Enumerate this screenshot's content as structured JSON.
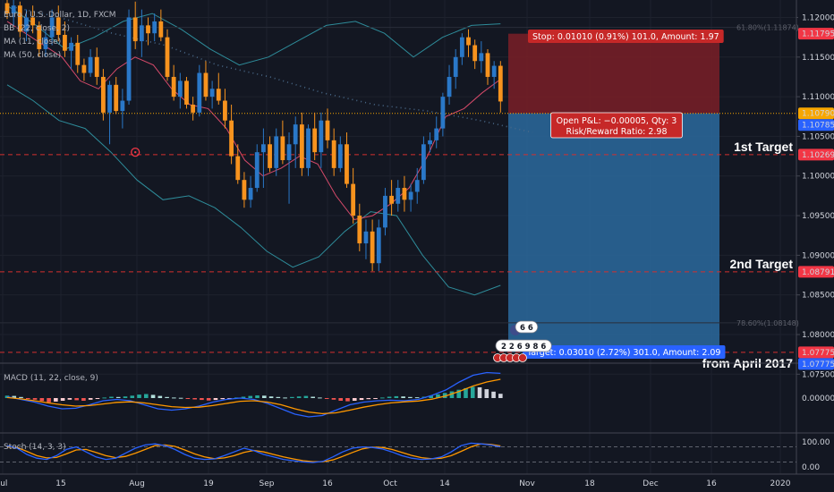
{
  "chart_data": {
    "type": "candlestick",
    "symbol": "Euro / U.S. Dollar, 1D, FXCM",
    "price_axis": {
      "range": [
        1.0765,
        1.1222
      ],
      "ticks": [
        "1.12000",
        "1.11500",
        "1.11000",
        "1.10500",
        "1.10000",
        "1.09500",
        "1.09000",
        "1.08500",
        "1.08000",
        "1.07500"
      ]
    },
    "date_axis": {
      "labels": [
        "Jul",
        "15",
        "Aug",
        "19",
        "Sep",
        "16",
        "Oct",
        "14",
        "Nov",
        "18",
        "Dec",
        "16",
        "2020"
      ]
    },
    "indicators": {
      "bb": "BB (22, close, 2)",
      "ma_fast": "MA (11, close)",
      "ma_slow": "MA (50, close)",
      "macd": "MACD (11, 22, close, 9)",
      "stoch": "Stoch (14, 3, 3)"
    },
    "candles": [
      [
        1.1218,
        1.1225,
        1.1198,
        1.1205
      ],
      [
        1.1205,
        1.1222,
        1.119,
        1.1215
      ],
      [
        1.1215,
        1.122,
        1.1175,
        1.1182
      ],
      [
        1.1182,
        1.121,
        1.117,
        1.12
      ],
      [
        1.12,
        1.1215,
        1.118,
        1.119
      ],
      [
        1.119,
        1.1195,
        1.115,
        1.116
      ],
      [
        1.116,
        1.1185,
        1.115,
        1.1175
      ],
      [
        1.1175,
        1.121,
        1.1165,
        1.12
      ],
      [
        1.12,
        1.1215,
        1.117,
        1.1178
      ],
      [
        1.1178,
        1.1195,
        1.115,
        1.1158
      ],
      [
        1.1158,
        1.1175,
        1.1135,
        1.1168
      ],
      [
        1.1168,
        1.1178,
        1.113,
        1.114
      ],
      [
        1.114,
        1.1148,
        1.112,
        1.113
      ],
      [
        1.113,
        1.116,
        1.1125,
        1.115
      ],
      [
        1.115,
        1.1162,
        1.1115,
        1.1125
      ],
      [
        1.1125,
        1.1135,
        1.107,
        1.108
      ],
      [
        1.108,
        1.112,
        1.104,
        1.1115
      ],
      [
        1.1115,
        1.1125,
        1.1078,
        1.1082
      ],
      [
        1.1082,
        1.111,
        1.106,
        1.1095
      ],
      [
        1.1095,
        1.121,
        1.109,
        1.12
      ],
      [
        1.12,
        1.122,
        1.116,
        1.117
      ],
      [
        1.117,
        1.121,
        1.115,
        1.119
      ],
      [
        1.119,
        1.12,
        1.1165,
        1.118
      ],
      [
        1.118,
        1.1205,
        1.117,
        1.1195
      ],
      [
        1.1195,
        1.121,
        1.117,
        1.1175
      ],
      [
        1.1175,
        1.1185,
        1.112,
        1.1125
      ],
      [
        1.1125,
        1.114,
        1.1095,
        1.11
      ],
      [
        1.11,
        1.113,
        1.1085,
        1.112
      ],
      [
        1.112,
        1.1125,
        1.1085,
        1.109
      ],
      [
        1.109,
        1.11,
        1.107,
        1.108
      ],
      [
        1.108,
        1.114,
        1.1075,
        1.113
      ],
      [
        1.113,
        1.1145,
        1.1095,
        1.11
      ],
      [
        1.11,
        1.112,
        1.1085,
        1.111
      ],
      [
        1.111,
        1.113,
        1.109,
        1.1095
      ],
      [
        1.1095,
        1.111,
        1.106,
        1.107
      ],
      [
        1.107,
        1.109,
        1.1015,
        1.1025
      ],
      [
        1.1025,
        1.104,
        1.099,
        1.0995
      ],
      [
        1.0995,
        1.1005,
        1.096,
        1.097
      ],
      [
        1.097,
        1.1,
        1.096,
        1.0985
      ],
      [
        1.0985,
        1.104,
        1.098,
        1.103
      ],
      [
        1.103,
        1.106,
        1.0985,
        1.104
      ],
      [
        1.104,
        1.105,
        1.1005,
        1.101
      ],
      [
        1.101,
        1.106,
        1.1,
        1.105
      ],
      [
        1.105,
        1.107,
        1.1015,
        1.102
      ],
      [
        1.102,
        1.1055,
        1.0965,
        1.104
      ],
      [
        1.104,
        1.1075,
        1.101,
        1.1065
      ],
      [
        1.1065,
        1.108,
        1.1,
        1.101
      ],
      [
        1.101,
        1.1065,
        1.1,
        1.106
      ],
      [
        1.106,
        1.108,
        1.102,
        1.103
      ],
      [
        1.103,
        1.108,
        1.101,
        1.107
      ],
      [
        1.107,
        1.1085,
        1.1035,
        1.1045
      ],
      [
        1.1045,
        1.106,
        1.1,
        1.101
      ],
      [
        1.101,
        1.105,
        1.1005,
        1.104
      ],
      [
        1.104,
        1.1055,
        1.0985,
        1.099
      ],
      [
        1.099,
        1.101,
        1.094,
        1.095
      ],
      [
        1.095,
        1.0965,
        1.0905,
        1.0915
      ],
      [
        1.0915,
        1.0945,
        1.0895,
        1.093
      ],
      [
        1.093,
        1.0945,
        1.088,
        1.089
      ],
      [
        1.089,
        1.0945,
        1.088,
        1.0935
      ],
      [
        1.0935,
        1.0985,
        1.0925,
        1.0975
      ],
      [
        1.0975,
        1.0995,
        1.095,
        1.0965
      ],
      [
        1.0965,
        1.0995,
        1.0955,
        1.0985
      ],
      [
        1.0985,
        1.1,
        1.0955,
        1.097
      ],
      [
        1.097,
        1.099,
        1.0955,
        1.098
      ],
      [
        1.098,
        1.101,
        1.0965,
        1.0995
      ],
      [
        1.0995,
        1.105,
        1.099,
        1.104
      ],
      [
        1.104,
        1.1055,
        1.103,
        1.1045
      ],
      [
        1.1045,
        1.1075,
        1.1035,
        1.106
      ],
      [
        1.106,
        1.1105,
        1.105,
        1.11
      ],
      [
        1.11,
        1.114,
        1.109,
        1.1125
      ],
      [
        1.1125,
        1.116,
        1.111,
        1.115
      ],
      [
        1.115,
        1.118,
        1.114,
        1.1175
      ],
      [
        1.1175,
        1.1185,
        1.115,
        1.1165
      ],
      [
        1.1165,
        1.1172,
        1.1135,
        1.1145
      ],
      [
        1.1145,
        1.117,
        1.113,
        1.1155
      ],
      [
        1.1155,
        1.116,
        1.1115,
        1.1125
      ],
      [
        1.1125,
        1.1145,
        1.111,
        1.1139
      ],
      [
        1.1139,
        1.1145,
        1.108,
        1.1094
      ]
    ],
    "bb_upper": [
      1.1215,
      1.119,
      1.116,
      1.1175,
      1.1195,
      1.1205,
      1.1185,
      1.116,
      1.114,
      1.115,
      1.117,
      1.119,
      1.1195,
      1.118,
      1.115,
      1.1175,
      1.119,
      1.1192
    ],
    "bb_lower": [
      1.1115,
      1.1095,
      1.107,
      1.106,
      1.103,
      1.0995,
      1.097,
      1.0975,
      1.096,
      1.0935,
      1.0905,
      1.0885,
      1.0898,
      1.093,
      1.0955,
      1.095,
      1.09,
      1.086,
      1.085,
      1.0862
    ],
    "ma_fast": [
      1.1195,
      1.118,
      1.1165,
      1.115,
      1.112,
      1.111,
      1.1135,
      1.115,
      1.114,
      1.111,
      1.109,
      1.1085,
      1.106,
      1.102,
      1.1,
      1.101,
      1.1025,
      1.1015,
      1.0975,
      1.0945,
      1.095,
      1.0965,
      1.0985,
      1.1025,
      1.1075,
      1.1085,
      1.1105,
      1.1122
    ],
    "ma_slow": [
      1.1215,
      1.12,
      1.118,
      1.1165,
      1.114,
      1.1125,
      1.1105,
      1.109,
      1.1082,
      1.107,
      1.1055
    ],
    "levels": [
      {
        "name": "entry",
        "price": 1.1079,
        "label": "1.10790"
      },
      {
        "name": "stop",
        "price": 1.11795,
        "label": "1.11795"
      },
      {
        "name": "target1",
        "price": 1.10269,
        "label": "1.10269"
      },
      {
        "name": "target2",
        "price": 1.08791,
        "label": "1.08791"
      },
      {
        "name": "target3",
        "price": 1.07775,
        "label": "1.07775"
      }
    ],
    "price_labels": [
      {
        "price": 1.12,
        "text": "1.12000"
      },
      {
        "price": 1.11795,
        "text": "1.11795",
        "color": "#f23645"
      },
      {
        "price": 1.1079,
        "text": "1.10790",
        "color": "#f7a600"
      },
      {
        "price": 1.10785,
        "text": "1.10785",
        "color": "#2962ff"
      },
      {
        "price": 1.10269,
        "text": "1.10269",
        "color": "#f23645"
      },
      {
        "price": 1.08791,
        "text": "1.08791",
        "color": "#f23645"
      },
      {
        "price": 1.07775,
        "text": "1.07775",
        "color": "#f23645"
      },
      {
        "price": 1.07775,
        "text": "1.07775",
        "color": "#2962ff"
      }
    ],
    "fib_labels": [
      "61.80%(1.11874)",
      "78.60%(1.08148)"
    ],
    "annotations": {
      "stop_box": "Stop: 0.01010 (0.91%) 101.0, Amount: 1.97",
      "pnl_line1": "Open P&L: −0.00005, Qty: 3",
      "pnl_line2": "Risk/Reward Ratio: 2.98",
      "target_box": "Target: 0.03010 (2.72%) 301.0, Amount: 2.09",
      "target1_label": "1st Target",
      "target2_label": "2nd Target",
      "target3_label": "from April 2017",
      "events_top": "6 6",
      "events_bottom": "2 2 6 9 8 6"
    },
    "macd": {
      "hist": [
        0.0009,
        0.0008,
        0.0004,
        -0.0002,
        -0.0006,
        -0.0011,
        -0.0016,
        -0.0013,
        -0.001,
        -0.0006,
        -0.0008,
        -0.001,
        -0.0006,
        -0.0002,
        0.0002,
        0.0005,
        0.0004,
        0.0006,
        0.0009,
        0.0013,
        0.0015,
        0.0012,
        0.0008,
        0.0004,
        0.0002,
        0.0001,
        -0.0002,
        -0.0005,
        -0.0007,
        -0.0009,
        -0.0007,
        -0.0004,
        -0.0002,
        0.0002,
        0.0005,
        0.0008,
        0.001,
        0.0009,
        0.0006,
        0.0004,
        0.0002,
        0.0004,
        0.0006,
        0.0008,
        0.0005,
        0.0002,
        -0.0002,
        -0.0006,
        -0.001,
        -0.0012,
        -0.001,
        -0.0007,
        -0.0004,
        -0.0001,
        0.0002,
        0.0005,
        0.0007,
        0.0006,
        0.0004,
        0.0003,
        0.0005,
        0.0009,
        0.0014,
        0.0019,
        0.0025,
        0.0031,
        0.0037,
        0.0042,
        0.004,
        0.0033,
        0.0024,
        0.0016
      ],
      "macd_line": [
        0.0005,
        -0.0005,
        -0.0015,
        -0.003,
        -0.004,
        -0.0038,
        -0.0025,
        -0.001,
        -0.0005,
        -0.001,
        -0.0025,
        -0.004,
        -0.0045,
        -0.004,
        -0.003,
        -0.0015,
        -0.0005,
        0.0,
        -0.0005,
        -0.002,
        -0.004,
        -0.006,
        -0.007,
        -0.0065,
        -0.0045,
        -0.0025,
        -0.0015,
        -0.001,
        -0.0008,
        -0.001,
        -0.0005,
        0.001,
        0.003,
        0.006,
        0.0085,
        0.0095,
        0.0092
      ],
      "signal_line": [
        0.0002,
        -0.0003,
        -0.001,
        -0.0018,
        -0.0025,
        -0.003,
        -0.0028,
        -0.0022,
        -0.0016,
        -0.0014,
        -0.0018,
        -0.0025,
        -0.0032,
        -0.0035,
        -0.0034,
        -0.0028,
        -0.002,
        -0.0012,
        -0.001,
        -0.0015,
        -0.0025,
        -0.004,
        -0.0052,
        -0.0058,
        -0.0055,
        -0.0045,
        -0.0034,
        -0.0025,
        -0.0018,
        -0.0014,
        -0.0011,
        -0.0004,
        0.0008,
        0.0025,
        0.0045,
        0.006,
        0.007
      ],
      "ticks": [
        "0.00000"
      ]
    },
    "stoch": {
      "k": [
        85,
        75,
        50,
        35,
        30,
        45,
        70,
        80,
        60,
        40,
        30,
        35,
        55,
        75,
        88,
        92,
        85,
        70,
        50,
        35,
        30,
        32,
        45,
        60,
        75,
        65,
        50,
        40,
        30,
        25,
        20,
        18,
        22,
        40,
        60,
        75,
        80,
        78,
        72,
        60,
        45,
        35,
        30,
        32,
        40,
        60,
        85,
        95,
        92,
        88,
        80
      ],
      "d": [
        80,
        78,
        62,
        45,
        36,
        38,
        52,
        68,
        70,
        58,
        45,
        37,
        42,
        55,
        70,
        85,
        88,
        82,
        68,
        52,
        40,
        33,
        36,
        45,
        58,
        66,
        60,
        50,
        40,
        32,
        25,
        21,
        21,
        28,
        42,
        58,
        72,
        79,
        78,
        70,
        58,
        46,
        37,
        33,
        35,
        45,
        62,
        80,
        92,
        90,
        84
      ],
      "ticks": [
        "100.00",
        "0.00"
      ]
    }
  }
}
